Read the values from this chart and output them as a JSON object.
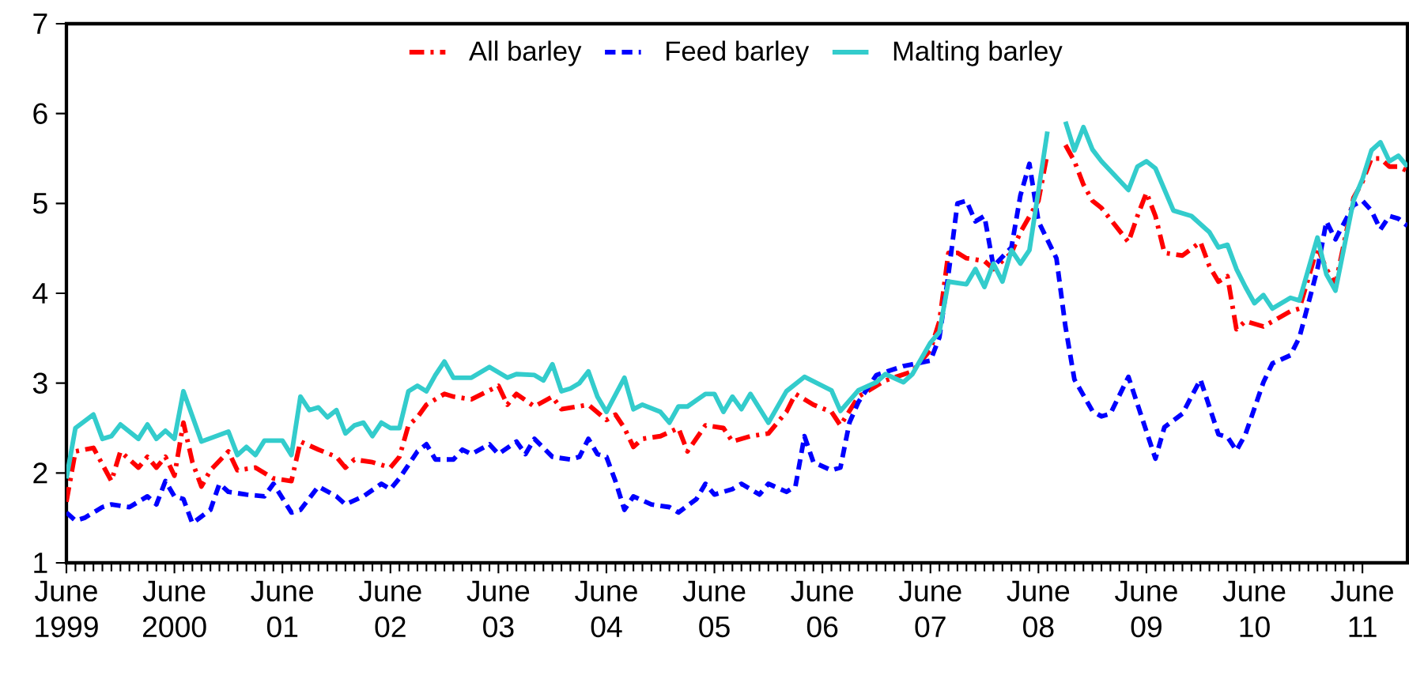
{
  "chart_data": {
    "type": "line",
    "xlim": [
      "1999-06",
      "2011-11"
    ],
    "ylim": [
      1,
      7
    ],
    "yticks": [
      1,
      2,
      3,
      4,
      5,
      6,
      7
    ],
    "xticks": [
      {
        "value": "1999-06",
        "label": "June 1999"
      },
      {
        "value": "2000-06",
        "label": "June 2000"
      },
      {
        "value": "2001-06",
        "label": "June 01"
      },
      {
        "value": "2002-06",
        "label": "June 02"
      },
      {
        "value": "2003-06",
        "label": "June 03"
      },
      {
        "value": "2004-06",
        "label": "June 04"
      },
      {
        "value": "2005-06",
        "label": "June 05"
      },
      {
        "value": "2006-06",
        "label": "June 06"
      },
      {
        "value": "2007-06",
        "label": "June 07"
      },
      {
        "value": "2008-06",
        "label": "June 08"
      },
      {
        "value": "2009-06",
        "label": "June 09"
      },
      {
        "value": "2010-06",
        "label": "June 10"
      },
      {
        "value": "2011-06",
        "label": "June 11"
      }
    ],
    "legend": "top",
    "marker": "none",
    "grid": false,
    "series": [
      {
        "name": "All barley",
        "color": "#ff0000",
        "line_style": "dashdot",
        "x": [
          "1999-06",
          "1999-07",
          "1999-09",
          "1999-11",
          "1999-12",
          "2000-02",
          "2000-03",
          "2000-04",
          "2000-05",
          "2000-06",
          "2000-07",
          "2000-08",
          "2000-09",
          "2000-10",
          "2000-12",
          "2001-01",
          "2001-03",
          "2001-05",
          "2001-07",
          "2001-08",
          "2001-10",
          "2001-12",
          "2002-01",
          "2002-02",
          "2002-04",
          "2002-06",
          "2002-07",
          "2002-08",
          "2002-09",
          "2002-10",
          "2002-12",
          "2003-01",
          "2003-03",
          "2003-06",
          "2003-07",
          "2003-08",
          "2003-10",
          "2003-12",
          "2004-01",
          "2004-04",
          "2004-06",
          "2004-07",
          "2004-08",
          "2004-09",
          "2004-10",
          "2004-12",
          "2005-02",
          "2005-03",
          "2005-05",
          "2005-07",
          "2005-08",
          "2005-10",
          "2005-12",
          "2006-02",
          "2006-03",
          "2006-05",
          "2006-07",
          "2006-08",
          "2006-10",
          "2007-01",
          "2007-04",
          "2007-06",
          "2007-07",
          "2007-08",
          "2007-09",
          "2007-10",
          "2007-12",
          "2008-01",
          "2008-03",
          "2008-04",
          "2008-06",
          "2008-07",
          "2008-08",
          "2008-09",
          "2008-10",
          "2008-11",
          "2008-12",
          "2009-01",
          "2009-04",
          "2009-05",
          "2009-06",
          "2009-07",
          "2009-08",
          "2009-10",
          "2009-12",
          "2010-01",
          "2010-02",
          "2010-03",
          "2010-04",
          "2010-05",
          "2010-07",
          "2010-10",
          "2010-11",
          "2011-01",
          "2011-02",
          "2011-03",
          "2011-05",
          "2011-06",
          "2011-07",
          "2011-08",
          "2011-09",
          "2011-10",
          "2011-11"
        ],
        "values": [
          1.68,
          2.24,
          2.28,
          1.91,
          2.24,
          2.06,
          2.18,
          2.06,
          2.18,
          1.97,
          2.56,
          2.12,
          1.85,
          2.03,
          2.24,
          2.03,
          2.06,
          1.94,
          1.91,
          2.35,
          2.26,
          2.18,
          2.06,
          2.15,
          2.12,
          2.06,
          2.18,
          2.53,
          2.62,
          2.76,
          2.88,
          2.85,
          2.82,
          2.97,
          2.76,
          2.88,
          2.74,
          2.85,
          2.71,
          2.76,
          2.59,
          2.65,
          2.5,
          2.29,
          2.38,
          2.41,
          2.5,
          2.24,
          2.53,
          2.5,
          2.35,
          2.41,
          2.44,
          2.68,
          2.88,
          2.76,
          2.68,
          2.53,
          2.85,
          3.03,
          3.13,
          3.37,
          3.69,
          4.45,
          4.45,
          4.39,
          4.36,
          4.27,
          4.45,
          4.68,
          5.03,
          5.56,
          null,
          5.65,
          5.47,
          5.21,
          5.03,
          4.95,
          4.57,
          4.86,
          5.12,
          4.86,
          4.45,
          4.42,
          4.57,
          4.3,
          4.13,
          4.19,
          3.6,
          3.69,
          3.63,
          3.8,
          3.83,
          4.51,
          4.27,
          4.1,
          5.06,
          5.24,
          5.5,
          5.5,
          5.41,
          5.41,
          5.36
        ]
      },
      {
        "name": "Feed barley",
        "color": "#0000ff",
        "line_style": "dashed",
        "x": [
          "1999-06",
          "1999-07",
          "1999-08",
          "1999-10",
          "1999-11",
          "2000-01",
          "2000-02",
          "2000-03",
          "2000-04",
          "2000-05",
          "2000-06",
          "2000-07",
          "2000-08",
          "2000-10",
          "2000-11",
          "2000-12",
          "2001-02",
          "2001-04",
          "2001-05",
          "2001-07",
          "2001-08",
          "2001-10",
          "2001-12",
          "2002-01",
          "2002-03",
          "2002-05",
          "2002-06",
          "2002-07",
          "2002-09",
          "2002-10",
          "2002-11",
          "2003-01",
          "2003-02",
          "2003-03",
          "2003-05",
          "2003-06",
          "2003-08",
          "2003-09",
          "2003-10",
          "2003-12",
          "2004-02",
          "2004-03",
          "2004-04",
          "2004-05",
          "2004-06",
          "2004-07",
          "2004-08",
          "2004-09",
          "2004-11",
          "2005-01",
          "2005-02",
          "2005-04",
          "2005-05",
          "2005-06",
          "2005-08",
          "2005-09",
          "2005-11",
          "2005-12",
          "2006-02",
          "2006-03",
          "2006-04",
          "2006-05",
          "2006-07",
          "2006-08",
          "2006-09",
          "2006-10",
          "2006-12",
          "2007-03",
          "2007-04",
          "2007-06",
          "2007-07",
          "2007-08",
          "2007-09",
          "2007-10",
          "2007-11",
          "2007-12",
          "2008-01",
          "2008-03",
          "2008-04",
          "2008-05",
          "2008-06",
          "2008-08",
          "2008-09",
          "2008-10",
          "2008-12",
          "2009-01",
          "2009-02",
          "2009-04",
          "2009-07",
          "2009-08",
          "2009-10",
          "2009-12",
          "2010-02",
          "2010-03",
          "2010-04",
          "2010-05",
          "2010-07",
          "2010-08",
          "2010-10",
          "2010-11",
          "2011-01",
          "2011-02",
          "2011-03",
          "2011-05",
          "2011-06",
          "2011-07",
          "2011-08",
          "2011-09",
          "2011-10",
          "2011-11"
        ],
        "values": [
          1.56,
          1.47,
          1.5,
          1.62,
          1.65,
          1.62,
          1.68,
          1.74,
          1.65,
          1.91,
          1.74,
          1.71,
          1.44,
          1.59,
          1.88,
          1.79,
          1.76,
          1.74,
          1.88,
          1.56,
          1.59,
          1.85,
          1.74,
          1.65,
          1.74,
          1.88,
          1.82,
          1.94,
          2.24,
          2.32,
          2.15,
          2.15,
          2.26,
          2.21,
          2.32,
          2.21,
          2.35,
          2.21,
          2.38,
          2.18,
          2.15,
          2.18,
          2.38,
          2.21,
          2.18,
          1.91,
          1.59,
          1.74,
          1.65,
          1.62,
          1.56,
          1.71,
          1.88,
          1.76,
          1.82,
          1.88,
          1.76,
          1.88,
          1.79,
          1.85,
          2.41,
          2.12,
          2.03,
          2.06,
          2.56,
          2.79,
          3.09,
          3.19,
          3.21,
          3.25,
          3.51,
          4.21,
          5.0,
          5.03,
          4.8,
          4.86,
          4.3,
          4.51,
          5.09,
          5.44,
          4.8,
          4.39,
          3.63,
          3.04,
          2.69,
          2.63,
          2.66,
          3.07,
          2.16,
          2.51,
          2.66,
          3.04,
          2.43,
          2.4,
          2.25,
          2.43,
          3.01,
          3.22,
          3.31,
          3.51,
          4.27,
          4.8,
          4.6,
          4.98,
          5.03,
          4.92,
          4.71,
          4.86,
          4.83,
          4.75
        ]
      },
      {
        "name": "Malting barley",
        "color": "#33cccc",
        "line_style": "solid",
        "x": [
          "1999-06",
          "1999-07",
          "1999-09",
          "1999-10",
          "1999-11",
          "1999-12",
          "2000-02",
          "2000-03",
          "2000-04",
          "2000-05",
          "2000-06",
          "2000-07",
          "2000-09",
          "2000-12",
          "2001-01",
          "2001-02",
          "2001-03",
          "2001-04",
          "2001-06",
          "2001-07",
          "2001-08",
          "2001-09",
          "2001-10",
          "2001-11",
          "2001-12",
          "2002-01",
          "2002-02",
          "2002-03",
          "2002-04",
          "2002-05",
          "2002-06",
          "2002-07",
          "2002-08",
          "2002-09",
          "2002-10",
          "2002-11",
          "2002-12",
          "2003-01",
          "2003-03",
          "2003-05",
          "2003-07",
          "2003-08",
          "2003-10",
          "2003-11",
          "2003-12",
          "2004-01",
          "2004-02",
          "2004-03",
          "2004-04",
          "2004-05",
          "2004-06",
          "2004-08",
          "2004-09",
          "2004-10",
          "2004-12",
          "2005-01",
          "2005-02",
          "2005-03",
          "2005-05",
          "2005-06",
          "2005-07",
          "2005-08",
          "2005-09",
          "2005-10",
          "2005-12",
          "2006-02",
          "2006-04",
          "2006-07",
          "2006-08",
          "2006-10",
          "2006-12",
          "2007-01",
          "2007-03",
          "2007-04",
          "2007-06",
          "2007-07",
          "2007-08",
          "2007-10",
          "2007-11",
          "2007-12",
          "2008-01",
          "2008-02",
          "2008-03",
          "2008-04",
          "2008-05",
          "2008-07",
          "2008-08",
          "2008-09",
          "2008-10",
          "2008-11",
          "2008-12",
          "2009-01",
          "2009-04",
          "2009-05",
          "2009-06",
          "2009-07",
          "2009-09",
          "2009-11",
          "2010-01",
          "2010-02",
          "2010-03",
          "2010-04",
          "2010-05",
          "2010-06",
          "2010-07",
          "2010-08",
          "2010-10",
          "2010-11",
          "2011-01",
          "2011-02",
          "2011-03",
          "2011-05",
          "2011-06",
          "2011-07",
          "2011-08",
          "2011-09",
          "2011-10",
          "2011-11"
        ],
        "values": [
          1.94,
          2.5,
          2.65,
          2.38,
          2.41,
          2.54,
          2.38,
          2.54,
          2.38,
          2.47,
          2.38,
          2.91,
          2.35,
          2.46,
          2.2,
          2.29,
          2.2,
          2.36,
          2.36,
          2.2,
          2.85,
          2.7,
          2.73,
          2.62,
          2.7,
          2.44,
          2.53,
          2.56,
          2.41,
          2.56,
          2.5,
          2.5,
          2.91,
          2.97,
          2.91,
          3.09,
          3.24,
          3.06,
          3.06,
          3.18,
          3.06,
          3.1,
          3.09,
          3.03,
          3.21,
          2.91,
          2.94,
          3.0,
          3.13,
          2.85,
          2.68,
          3.06,
          2.71,
          2.76,
          2.68,
          2.56,
          2.74,
          2.74,
          2.88,
          2.88,
          2.68,
          2.85,
          2.71,
          2.88,
          2.56,
          2.91,
          3.07,
          2.92,
          2.69,
          2.92,
          3.01,
          3.1,
          3.01,
          3.1,
          3.45,
          3.57,
          4.13,
          4.1,
          4.27,
          4.07,
          4.33,
          4.13,
          4.48,
          4.33,
          4.48,
          5.8,
          null,
          5.91,
          5.59,
          5.85,
          5.6,
          5.47,
          5.15,
          5.41,
          5.47,
          5.39,
          4.92,
          4.86,
          4.68,
          4.51,
          4.54,
          4.27,
          4.07,
          3.89,
          3.98,
          3.83,
          3.95,
          3.92,
          4.62,
          4.21,
          4.03,
          5.03,
          5.27,
          5.59,
          5.68,
          5.47,
          5.53,
          5.41
        ]
      }
    ]
  }
}
